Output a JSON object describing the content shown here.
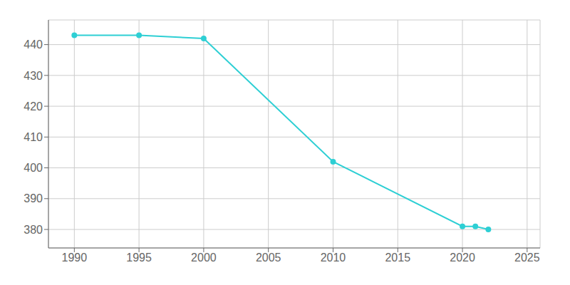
{
  "chart_data": {
    "type": "line",
    "x": [
      1990,
      1995,
      2000,
      2010,
      2020,
      2021,
      2022
    ],
    "values": [
      443,
      443,
      442,
      402,
      381,
      381,
      380
    ],
    "color": "#2ECFD4",
    "marker": "circle",
    "xlim": [
      1988,
      2026
    ],
    "ylim": [
      374,
      448
    ],
    "xticks": [
      1990,
      1995,
      2000,
      2005,
      2010,
      2015,
      2020,
      2025
    ],
    "yticks": [
      380,
      390,
      400,
      410,
      420,
      430,
      440
    ],
    "grid": true
  }
}
